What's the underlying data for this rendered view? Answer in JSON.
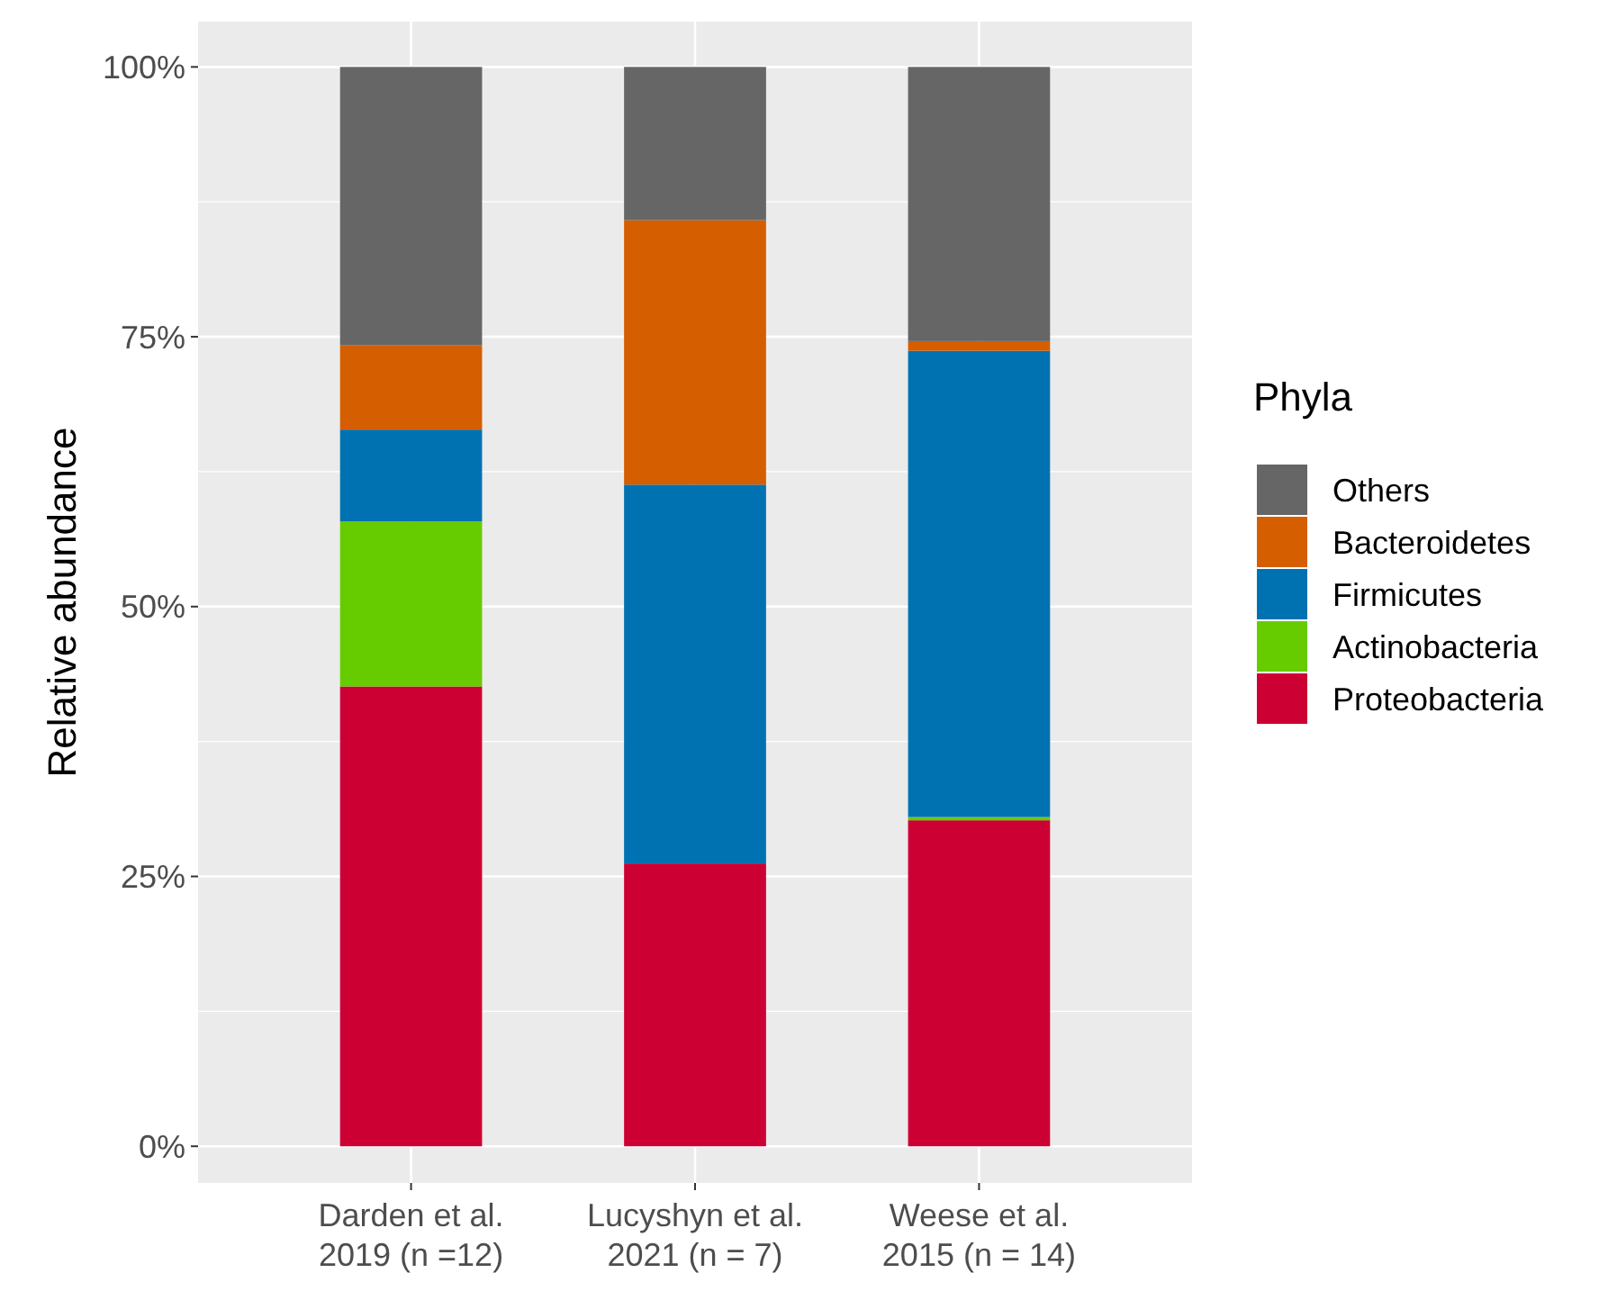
{
  "chart_data": {
    "type": "bar",
    "stacked": true,
    "ylabel": "Relative abundance",
    "legend_title": "Phyla",
    "legend": "right",
    "categories": [
      "Darden et al.\n2019 (n =12)",
      "Lucyshyn et al.\n2021 (n = 7)",
      "Weese et al.\n2015 (n = 14)"
    ],
    "ylim": [
      -3.4,
      104.2
    ],
    "yticks": [
      {
        "value": 0,
        "label": "0%"
      },
      {
        "value": 25,
        "label": "25%"
      },
      {
        "value": 50,
        "label": "50%"
      },
      {
        "value": 75,
        "label": "75%"
      },
      {
        "value": 100,
        "label": "100%"
      }
    ],
    "grid": true,
    "series": [
      {
        "name": "Proteobacteria",
        "color": "#cc0033",
        "values": [
          42.6,
          26.2,
          30.2
        ]
      },
      {
        "name": "Actinobacteria",
        "color": "#66cc00",
        "values": [
          15.3,
          0,
          0.3
        ]
      },
      {
        "name": "Firmicutes",
        "color": "#0072b2",
        "values": [
          8.5,
          35.1,
          43.2
        ]
      },
      {
        "name": "Bacteroidetes",
        "color": "#d55e00",
        "values": [
          7.8,
          24.5,
          0.9
        ]
      },
      {
        "name": "Others",
        "color": "#666666",
        "values": [
          25.8,
          14.2,
          25.4
        ]
      }
    ]
  }
}
